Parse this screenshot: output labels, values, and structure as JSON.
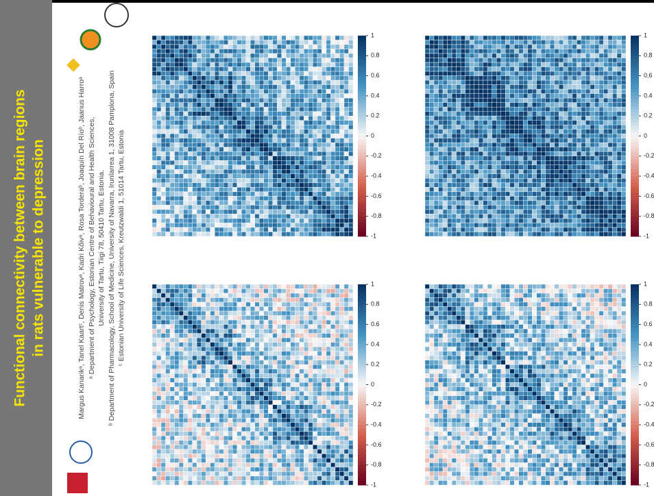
{
  "poster": {
    "title_lines": [
      "Functional connectivity between brain regions",
      "in rats vulnerable to depression"
    ],
    "author_lines": [
      "Margus Kanarikᵃ, Tanel Kaartᶜ, Denis Matrovᵃ, Kadri Kõivᵃ, Rosa Torderaᵇ, Joaquín Del Ríoᵇ, Jaanus Harroᵃ",
      "ᵃ Department of Psychology, Estonian Centre of Behavioural and Health Sciences,",
      "University of Tartu, Tiigi 78, 50410 Tartu, Estonia.",
      "ᵇ Department of Pharmacology, School of Medicine, University of Navarra, Irunlarrea 1, 31008 Pamplona, Spain",
      "ᶜ Estonian University of Life Sciences, Kreutzwaldi 1, 51014 Tartu, Estonia"
    ]
  },
  "colorbar": {
    "lim": [
      -1,
      1
    ],
    "ticks": [
      1,
      0.8,
      0.6,
      0.4,
      0.2,
      0,
      -0.2,
      -0.4,
      -0.6,
      -0.8,
      -1
    ]
  }
}
